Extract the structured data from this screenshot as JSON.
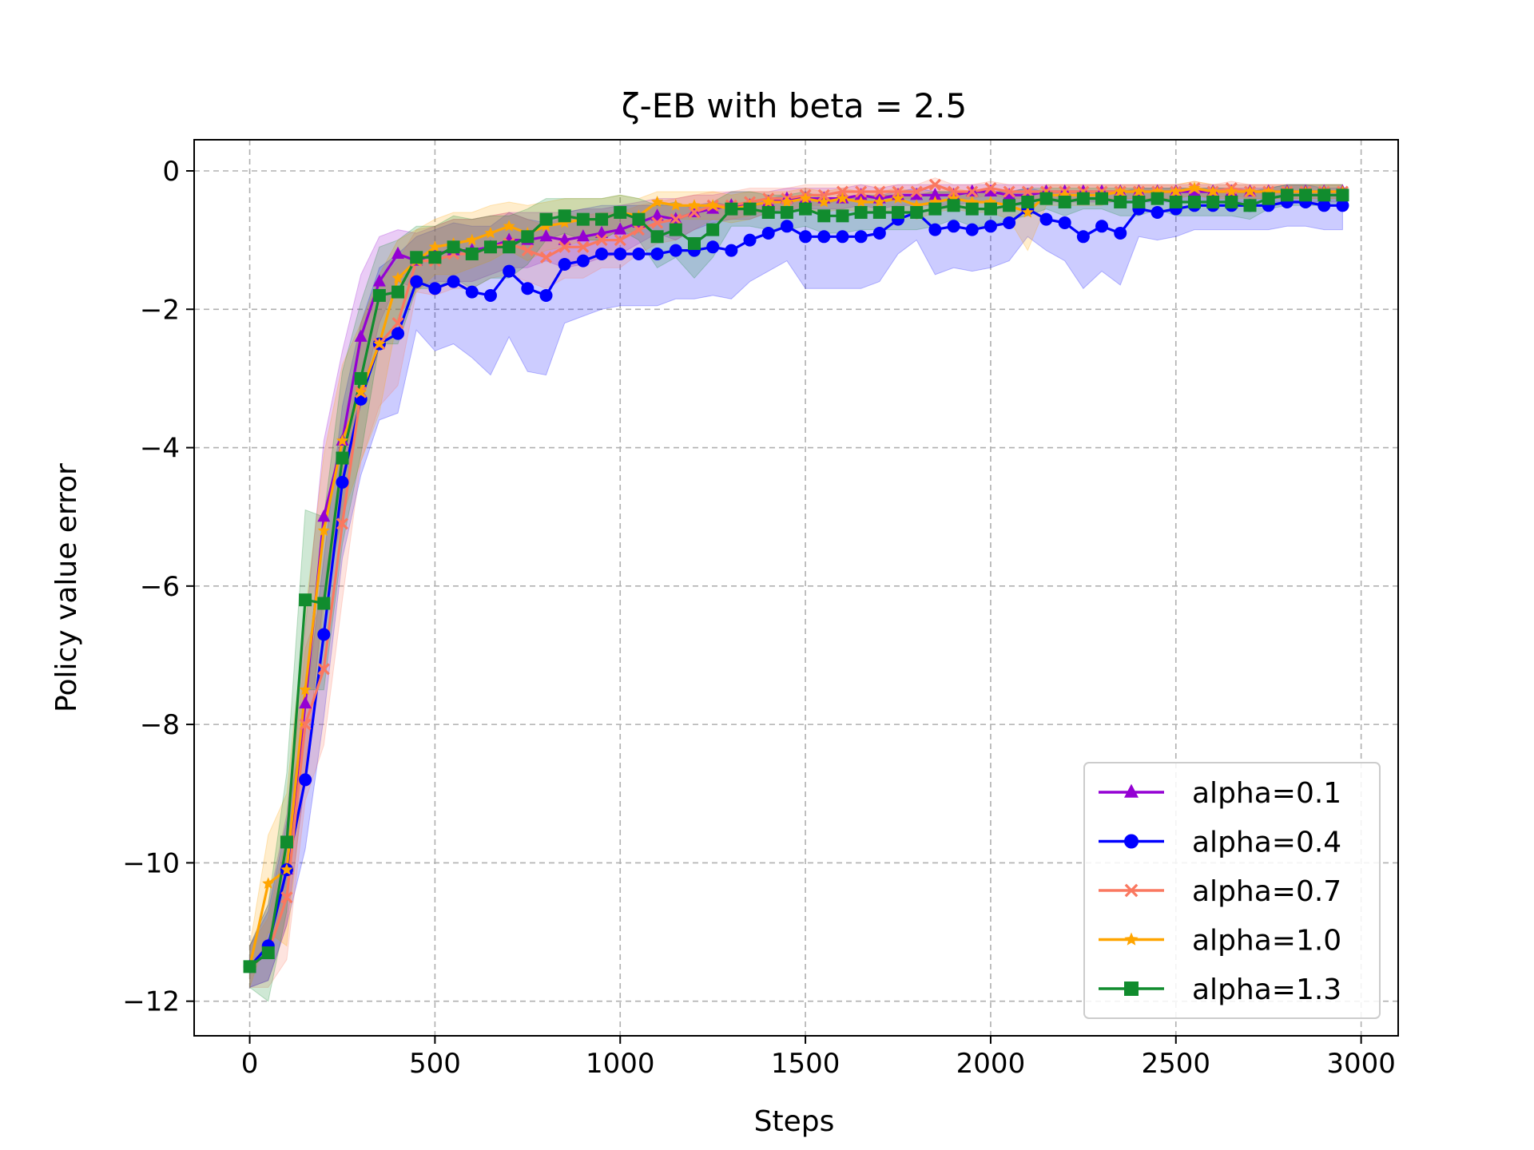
{
  "chart_data": {
    "type": "line",
    "title": "ζ-EB with beta = 2.5",
    "xlabel": "Steps",
    "ylabel": "Policy value error",
    "xlim": [
      -150,
      3100
    ],
    "ylim": [
      -12.5,
      0.45
    ],
    "xticks": [
      0,
      500,
      1000,
      1500,
      2000,
      2500,
      3000
    ],
    "yticks": [
      -12,
      -10,
      -8,
      -6,
      -4,
      -2,
      0
    ],
    "xtick_labels": [
      "0",
      "500",
      "1000",
      "1500",
      "2000",
      "2500",
      "3000"
    ],
    "ytick_labels": [
      "−12",
      "−10",
      "−8",
      "−6",
      "−4",
      "−2",
      "0"
    ],
    "grid": true,
    "legend_position": "lower-right",
    "x": [
      0,
      50,
      100,
      150,
      200,
      250,
      300,
      350,
      400,
      450,
      500,
      550,
      600,
      650,
      700,
      750,
      800,
      850,
      900,
      950,
      1000,
      1050,
      1100,
      1150,
      1200,
      1250,
      1300,
      1350,
      1400,
      1450,
      1500,
      1550,
      1600,
      1650,
      1700,
      1750,
      1800,
      1850,
      1900,
      1950,
      2000,
      2050,
      2100,
      2150,
      2200,
      2250,
      2300,
      2350,
      2400,
      2450,
      2500,
      2550,
      2600,
      2650,
      2700,
      2750,
      2800,
      2850,
      2900,
      2950
    ],
    "series": [
      {
        "name": "alpha=0.1",
        "color": "#9400D3",
        "marker": "triangle",
        "values": [
          -11.5,
          -11.2,
          -10.1,
          -7.7,
          -5.0,
          -3.9,
          -2.4,
          -1.6,
          -1.2,
          -1.3,
          -1.2,
          -1.15,
          -1.15,
          -1.1,
          -1.0,
          -1.0,
          -0.95,
          -1.0,
          -0.95,
          -0.9,
          -0.85,
          -0.75,
          -0.65,
          -0.7,
          -0.6,
          -0.55,
          -0.5,
          -0.5,
          -0.45,
          -0.4,
          -0.4,
          -0.4,
          -0.4,
          -0.35,
          -0.4,
          -0.35,
          -0.35,
          -0.35,
          -0.35,
          -0.3,
          -0.3,
          -0.35,
          -0.35,
          -0.3,
          -0.3,
          -0.3,
          -0.3,
          -0.3,
          -0.3,
          -0.3,
          -0.3,
          -0.3,
          -0.3,
          -0.3,
          -0.3,
          -0.3,
          -0.3,
          -0.3,
          -0.3,
          -0.3
        ],
        "upper": [
          -11.2,
          -10.6,
          -9.3,
          -6.6,
          -3.9,
          -2.6,
          -1.5,
          -0.95,
          -0.85,
          -0.9,
          -0.8,
          -0.7,
          -0.7,
          -0.65,
          -0.6,
          -0.6,
          -0.6,
          -0.6,
          -0.55,
          -0.55,
          -0.5,
          -0.45,
          -0.4,
          -0.4,
          -0.35,
          -0.35,
          -0.3,
          -0.3,
          -0.3,
          -0.25,
          -0.25,
          -0.25,
          -0.25,
          -0.2,
          -0.25,
          -0.2,
          -0.2,
          -0.2,
          -0.2,
          -0.2,
          -0.2,
          -0.2,
          -0.2,
          -0.2,
          -0.2,
          -0.2,
          -0.2,
          -0.2,
          -0.2,
          -0.2,
          -0.2,
          -0.2,
          -0.2,
          -0.2,
          -0.2,
          -0.2,
          -0.2,
          -0.2,
          -0.2,
          -0.2
        ],
        "lower": [
          -11.8,
          -11.7,
          -10.9,
          -8.8,
          -6.1,
          -5.0,
          -3.3,
          -2.2,
          -1.6,
          -1.7,
          -1.6,
          -1.6,
          -1.6,
          -1.5,
          -1.4,
          -1.4,
          -1.3,
          -1.4,
          -1.35,
          -1.25,
          -1.2,
          -1.05,
          -0.9,
          -1.0,
          -0.85,
          -0.75,
          -0.7,
          -0.7,
          -0.6,
          -0.55,
          -0.55,
          -0.55,
          -0.55,
          -0.5,
          -0.55,
          -0.5,
          -0.5,
          -0.5,
          -0.5,
          -0.45,
          -0.45,
          -0.5,
          -0.5,
          -0.45,
          -0.45,
          -0.45,
          -0.45,
          -0.45,
          -0.45,
          -0.45,
          -0.45,
          -0.45,
          -0.45,
          -0.45,
          -0.45,
          -0.45,
          -0.45,
          -0.45,
          -0.45,
          -0.45
        ]
      },
      {
        "name": "alpha=0.4",
        "color": "#0000FF",
        "marker": "circle",
        "values": [
          -11.5,
          -11.2,
          -10.1,
          -8.8,
          -6.7,
          -4.5,
          -3.3,
          -2.5,
          -2.35,
          -1.6,
          -1.7,
          -1.6,
          -1.75,
          -1.8,
          -1.45,
          -1.7,
          -1.8,
          -1.35,
          -1.3,
          -1.2,
          -1.2,
          -1.2,
          -1.2,
          -1.15,
          -1.15,
          -1.1,
          -1.15,
          -1.0,
          -0.9,
          -0.8,
          -0.95,
          -0.95,
          -0.95,
          -0.95,
          -0.9,
          -0.7,
          -0.6,
          -0.85,
          -0.8,
          -0.85,
          -0.8,
          -0.75,
          -0.55,
          -0.7,
          -0.75,
          -0.95,
          -0.8,
          -0.9,
          -0.55,
          -0.6,
          -0.55,
          -0.5,
          -0.5,
          -0.5,
          -0.5,
          -0.5,
          -0.45,
          -0.45,
          -0.5,
          -0.5
        ],
        "upper": [
          -11.2,
          -10.7,
          -9.4,
          -7.8,
          -5.6,
          -3.4,
          -2.2,
          -1.4,
          -1.2,
          -0.95,
          -0.85,
          -0.75,
          -0.8,
          -0.8,
          -0.6,
          -0.7,
          -0.75,
          -0.6,
          -0.55,
          -0.5,
          -0.5,
          -0.5,
          -0.5,
          -0.5,
          -0.5,
          -0.45,
          -0.5,
          -0.45,
          -0.4,
          -0.35,
          -0.4,
          -0.4,
          -0.4,
          -0.4,
          -0.35,
          -0.3,
          -0.25,
          -0.3,
          -0.3,
          -0.3,
          -0.3,
          -0.3,
          -0.25,
          -0.3,
          -0.3,
          -0.3,
          -0.3,
          -0.3,
          -0.25,
          -0.25,
          -0.25,
          -0.25,
          -0.25,
          -0.25,
          -0.25,
          -0.25,
          -0.2,
          -0.2,
          -0.25,
          -0.25
        ],
        "lower": [
          -11.8,
          -11.7,
          -10.9,
          -9.8,
          -7.9,
          -5.6,
          -4.4,
          -3.6,
          -3.5,
          -2.3,
          -2.6,
          -2.5,
          -2.7,
          -2.95,
          -2.4,
          -2.9,
          -2.95,
          -2.2,
          -2.1,
          -2.0,
          -1.95,
          -1.95,
          -1.95,
          -1.85,
          -1.85,
          -1.8,
          -1.85,
          -1.6,
          -1.45,
          -1.3,
          -1.7,
          -1.7,
          -1.7,
          -1.7,
          -1.6,
          -1.2,
          -1.0,
          -1.5,
          -1.4,
          -1.45,
          -1.4,
          -1.3,
          -0.95,
          -1.15,
          -1.3,
          -1.7,
          -1.45,
          -1.65,
          -0.95,
          -1.0,
          -0.95,
          -0.85,
          -0.85,
          -0.85,
          -0.85,
          -0.85,
          -0.8,
          -0.8,
          -0.85,
          -0.85
        ]
      },
      {
        "name": "alpha=0.7",
        "color": "#FA7860",
        "marker": "x",
        "values": [
          -11.5,
          -11.3,
          -10.5,
          -8.0,
          -7.2,
          -5.1,
          -3.2,
          -2.5,
          -2.2,
          -1.3,
          -1.3,
          -1.2,
          -1.2,
          -1.1,
          -1.05,
          -1.15,
          -1.25,
          -1.1,
          -1.1,
          -1.0,
          -1.0,
          -0.85,
          -0.75,
          -0.7,
          -0.6,
          -0.5,
          -0.5,
          -0.45,
          -0.4,
          -0.4,
          -0.35,
          -0.35,
          -0.3,
          -0.3,
          -0.3,
          -0.3,
          -0.3,
          -0.2,
          -0.3,
          -0.3,
          -0.25,
          -0.3,
          -0.3,
          -0.3,
          -0.3,
          -0.3,
          -0.3,
          -0.3,
          -0.3,
          -0.3,
          -0.3,
          -0.25,
          -0.3,
          -0.25,
          -0.3,
          -0.3,
          -0.3,
          -0.3,
          -0.3,
          -0.3
        ],
        "upper": [
          -11.2,
          -10.8,
          -9.6,
          -6.9,
          -6.1,
          -4.0,
          -2.2,
          -1.6,
          -1.3,
          -0.85,
          -0.8,
          -0.7,
          -0.7,
          -0.65,
          -0.6,
          -0.7,
          -0.8,
          -0.65,
          -0.65,
          -0.6,
          -0.6,
          -0.5,
          -0.45,
          -0.4,
          -0.35,
          -0.3,
          -0.3,
          -0.25,
          -0.25,
          -0.25,
          -0.2,
          -0.2,
          -0.2,
          -0.2,
          -0.2,
          -0.2,
          -0.2,
          -0.1,
          -0.2,
          -0.2,
          -0.15,
          -0.2,
          -0.2,
          -0.2,
          -0.2,
          -0.2,
          -0.2,
          -0.2,
          -0.2,
          -0.2,
          -0.2,
          -0.15,
          -0.2,
          -0.15,
          -0.2,
          -0.2,
          -0.2,
          -0.2,
          -0.2,
          -0.2
        ],
        "lower": [
          -11.8,
          -11.8,
          -11.4,
          -9.1,
          -8.3,
          -6.2,
          -4.2,
          -3.4,
          -3.1,
          -1.75,
          -1.8,
          -1.7,
          -1.7,
          -1.55,
          -1.5,
          -1.6,
          -1.7,
          -1.55,
          -1.55,
          -1.4,
          -1.4,
          -1.2,
          -1.05,
          -1.0,
          -0.85,
          -0.7,
          -0.7,
          -0.65,
          -0.55,
          -0.55,
          -0.5,
          -0.5,
          -0.4,
          -0.4,
          -0.4,
          -0.4,
          -0.4,
          -0.3,
          -0.4,
          -0.4,
          -0.35,
          -0.4,
          -0.4,
          -0.4,
          -0.4,
          -0.4,
          -0.4,
          -0.4,
          -0.4,
          -0.4,
          -0.4,
          -0.35,
          -0.4,
          -0.35,
          -0.4,
          -0.4,
          -0.4,
          -0.4,
          -0.4,
          -0.4
        ]
      },
      {
        "name": "alpha=1.0",
        "color": "#FFA500",
        "marker": "star",
        "values": [
          -11.5,
          -10.3,
          -10.1,
          -7.5,
          -5.2,
          -3.9,
          -3.2,
          -2.5,
          -1.55,
          -1.3,
          -1.1,
          -1.05,
          -1.0,
          -0.9,
          -0.8,
          -0.9,
          -0.8,
          -0.75,
          -0.7,
          -0.7,
          -0.6,
          -0.65,
          -0.45,
          -0.5,
          -0.5,
          -0.5,
          -0.55,
          -0.5,
          -0.45,
          -0.45,
          -0.4,
          -0.45,
          -0.4,
          -0.45,
          -0.45,
          -0.4,
          -0.5,
          -0.45,
          -0.4,
          -0.45,
          -0.45,
          -0.5,
          -0.6,
          -0.35,
          -0.35,
          -0.35,
          -0.35,
          -0.3,
          -0.3,
          -0.3,
          -0.3,
          -0.25,
          -0.3,
          -0.3,
          -0.3,
          -0.3,
          -0.3,
          -0.3,
          -0.3,
          -0.3
        ],
        "upper": [
          -11.2,
          -9.6,
          -9.0,
          -6.4,
          -4.1,
          -2.8,
          -2.2,
          -1.5,
          -1.0,
          -0.85,
          -0.7,
          -0.6,
          -0.6,
          -0.5,
          -0.45,
          -0.5,
          -0.45,
          -0.4,
          -0.4,
          -0.4,
          -0.35,
          -0.4,
          -0.3,
          -0.3,
          -0.3,
          -0.3,
          -0.35,
          -0.3,
          -0.3,
          -0.3,
          -0.25,
          -0.3,
          -0.25,
          -0.3,
          -0.3,
          -0.25,
          -0.3,
          -0.3,
          -0.25,
          -0.3,
          -0.3,
          -0.3,
          -0.4,
          -0.2,
          -0.2,
          -0.2,
          -0.2,
          -0.2,
          -0.2,
          -0.2,
          -0.2,
          -0.15,
          -0.2,
          -0.2,
          -0.2,
          -0.2,
          -0.2,
          -0.2,
          -0.2,
          -0.2
        ],
        "lower": [
          -11.8,
          -11.0,
          -11.2,
          -8.6,
          -6.3,
          -5.0,
          -4.2,
          -3.5,
          -2.1,
          -1.75,
          -1.5,
          -1.5,
          -1.4,
          -1.3,
          -1.15,
          -1.3,
          -1.15,
          -1.1,
          -1.0,
          -1.0,
          -0.85,
          -0.9,
          -0.6,
          -0.7,
          -0.7,
          -0.7,
          -0.75,
          -0.7,
          -0.6,
          -0.6,
          -0.55,
          -0.6,
          -0.55,
          -0.6,
          -0.6,
          -0.55,
          -0.7,
          -0.6,
          -0.55,
          -0.6,
          -0.6,
          -0.7,
          -1.15,
          -0.5,
          -0.5,
          -0.5,
          -0.5,
          -0.4,
          -0.4,
          -0.4,
          -0.4,
          -0.35,
          -0.4,
          -0.4,
          -0.4,
          -0.4,
          -0.4,
          -0.4,
          -0.4,
          -0.4
        ]
      },
      {
        "name": "alpha=1.3",
        "color": "#118C2E",
        "marker": "square",
        "values": [
          -11.5,
          -11.3,
          -9.7,
          -6.2,
          -6.25,
          -4.15,
          -3.0,
          -1.8,
          -1.75,
          -1.25,
          -1.25,
          -1.1,
          -1.2,
          -1.1,
          -1.1,
          -0.95,
          -0.7,
          -0.65,
          -0.7,
          -0.7,
          -0.6,
          -0.7,
          -0.95,
          -0.85,
          -1.05,
          -0.85,
          -0.55,
          -0.55,
          -0.6,
          -0.6,
          -0.55,
          -0.65,
          -0.65,
          -0.6,
          -0.6,
          -0.6,
          -0.6,
          -0.55,
          -0.5,
          -0.55,
          -0.55,
          -0.5,
          -0.45,
          -0.4,
          -0.45,
          -0.4,
          -0.4,
          -0.45,
          -0.45,
          -0.4,
          -0.45,
          -0.45,
          -0.45,
          -0.45,
          -0.5,
          -0.4,
          -0.35,
          -0.35,
          -0.35,
          -0.35
        ],
        "upper": [
          -11.2,
          -10.6,
          -8.7,
          -4.9,
          -5.0,
          -2.9,
          -1.9,
          -1.1,
          -1.0,
          -0.8,
          -0.8,
          -0.65,
          -0.7,
          -0.65,
          -0.65,
          -0.55,
          -0.4,
          -0.4,
          -0.4,
          -0.4,
          -0.35,
          -0.4,
          -0.5,
          -0.45,
          -0.55,
          -0.45,
          -0.3,
          -0.3,
          -0.35,
          -0.35,
          -0.3,
          -0.4,
          -0.4,
          -0.35,
          -0.35,
          -0.35,
          -0.35,
          -0.3,
          -0.3,
          -0.3,
          -0.3,
          -0.3,
          -0.25,
          -0.25,
          -0.25,
          -0.25,
          -0.25,
          -0.25,
          -0.25,
          -0.25,
          -0.25,
          -0.25,
          -0.25,
          -0.25,
          -0.3,
          -0.25,
          -0.2,
          -0.2,
          -0.2,
          -0.2
        ],
        "lower": [
          -11.8,
          -12.0,
          -10.7,
          -7.5,
          -7.5,
          -5.4,
          -4.1,
          -2.5,
          -2.5,
          -1.7,
          -1.7,
          -1.55,
          -1.7,
          -1.55,
          -1.55,
          -1.35,
          -1.0,
          -0.9,
          -1.0,
          -1.0,
          -0.85,
          -1.0,
          -1.4,
          -1.25,
          -1.55,
          -1.25,
          -0.8,
          -0.8,
          -0.85,
          -0.85,
          -0.8,
          -0.9,
          -0.9,
          -0.85,
          -0.85,
          -0.85,
          -0.85,
          -0.8,
          -0.7,
          -0.8,
          -0.8,
          -0.7,
          -0.65,
          -0.55,
          -0.65,
          -0.55,
          -0.55,
          -0.65,
          -0.65,
          -0.55,
          -0.65,
          -0.65,
          -0.65,
          -0.65,
          -0.7,
          -0.55,
          -0.5,
          -0.5,
          -0.5,
          -0.5
        ]
      }
    ]
  }
}
